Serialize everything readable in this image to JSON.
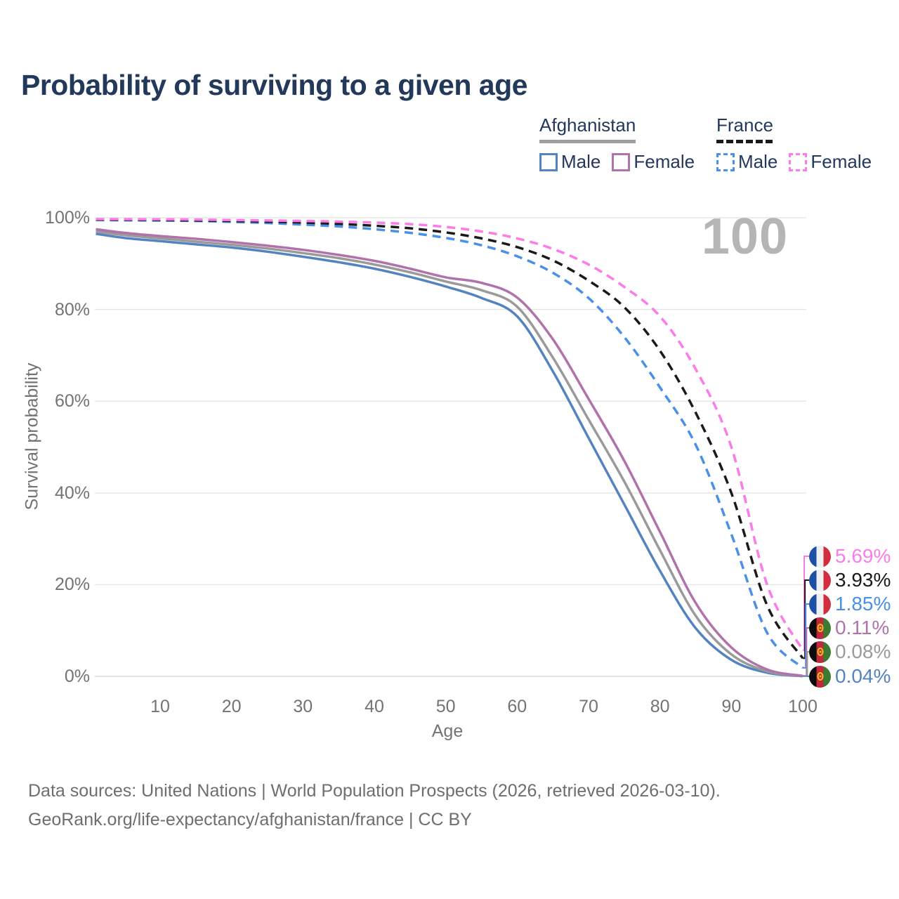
{
  "title": "Probability of surviving to a given age",
  "watermark": "100",
  "legend": {
    "groups": [
      {
        "name": "Afghanistan",
        "line_style": "solid",
        "underline_color": "#9e9e9e",
        "items": [
          {
            "label": "Male",
            "color": "#5483c1",
            "dashed": false
          },
          {
            "label": "Female",
            "color": "#b172ab",
            "dashed": false
          }
        ]
      },
      {
        "name": "France",
        "line_style": "dashed",
        "underline_color": "#1a1a1a",
        "items": [
          {
            "label": "Male",
            "color": "#4a90e8",
            "dashed": true
          },
          {
            "label": "Female",
            "color": "#fb7ce8",
            "dashed": true
          }
        ]
      }
    ]
  },
  "axes": {
    "y_label": "Survival probability",
    "x_label": "Age",
    "y_ticks": [
      "100%",
      "80%",
      "60%",
      "40%",
      "20%",
      "0%"
    ],
    "x_ticks": [
      "10",
      "20",
      "30",
      "40",
      "50",
      "60",
      "70",
      "80",
      "90",
      "100"
    ]
  },
  "end_labels": [
    {
      "value": "5.69%",
      "color": "#fb7ce8",
      "flag": "france"
    },
    {
      "value": "3.93%",
      "color": "#1a1a1a",
      "flag": "france"
    },
    {
      "value": "1.85%",
      "color": "#4a90e8",
      "flag": "france"
    },
    {
      "value": "0.11%",
      "color": "#b172ab",
      "flag": "afghanistan"
    },
    {
      "value": "0.08%",
      "color": "#9a9a9a",
      "flag": "afghanistan"
    },
    {
      "value": "0.04%",
      "color": "#5483c1",
      "flag": "afghanistan"
    }
  ],
  "footer": {
    "line1": "Data sources: United Nations | World Population Prospects (2026, retrieved 2026-03-10).",
    "line2": "GeoRank.org/life-expectancy/afghanistan/france | CC BY"
  },
  "chart_data": {
    "type": "line",
    "title": "Probability of surviving to a given age",
    "xlabel": "Age",
    "ylabel": "Survival probability",
    "x_range": [
      0,
      100
    ],
    "y_range_percent": [
      0,
      100
    ],
    "grid": true,
    "grid_color": "#e6e6e6",
    "legend_position": "top-right",
    "ages": [
      1,
      5,
      10,
      15,
      20,
      25,
      30,
      35,
      40,
      45,
      50,
      55,
      60,
      65,
      70,
      75,
      80,
      85,
      90,
      95,
      100
    ],
    "series": [
      {
        "name": "Afghanistan Male",
        "color": "#5483c1",
        "dash": false,
        "end_label": "0.04%",
        "values": [
          96.5,
          95.6,
          94.9,
          94.2,
          93.5,
          92.6,
          91.5,
          90.3,
          88.9,
          87.1,
          85.0,
          82.5,
          78.5,
          66.5,
          52.0,
          37.5,
          23.0,
          10.5,
          3.6,
          0.8,
          0.04
        ]
      },
      {
        "name": "Afghanistan Total",
        "color": "#9a9a9a",
        "dash": false,
        "end_label": "0.08%",
        "values": [
          97.0,
          96.2,
          95.5,
          94.8,
          94.1,
          93.3,
          92.3,
          91.2,
          89.8,
          88.1,
          86.1,
          84.2,
          80.6,
          69.5,
          56.0,
          42.5,
          27.5,
          13.2,
          4.8,
          1.1,
          0.08
        ]
      },
      {
        "name": "Afghanistan Female",
        "color": "#b172ab",
        "dash": false,
        "end_label": "0.11%",
        "values": [
          97.5,
          96.7,
          96.0,
          95.4,
          94.7,
          93.9,
          93.0,
          91.9,
          90.6,
          88.9,
          87.0,
          85.8,
          82.6,
          73.5,
          60.5,
          47.0,
          31.5,
          16.0,
          6.3,
          1.5,
          0.11
        ]
      },
      {
        "name": "France Male",
        "color": "#4a90e8",
        "dash": true,
        "end_label": "1.85%",
        "values": [
          99.5,
          99.45,
          99.4,
          99.3,
          99.1,
          98.85,
          98.5,
          98.1,
          97.5,
          96.7,
          95.6,
          94.0,
          91.6,
          88.0,
          82.5,
          74.0,
          63.0,
          50.5,
          31.0,
          9.5,
          1.85
        ]
      },
      {
        "name": "France Total",
        "color": "#1a1a1a",
        "dash": true,
        "end_label": "3.93%",
        "values": [
          99.6,
          99.55,
          99.5,
          99.4,
          99.3,
          99.15,
          98.95,
          98.65,
          98.25,
          97.7,
          96.8,
          95.5,
          93.6,
          90.7,
          86.3,
          80.5,
          71.0,
          57.5,
          40.0,
          15.5,
          3.93
        ]
      },
      {
        "name": "France Female",
        "color": "#fb7ce8",
        "dash": true,
        "end_label": "5.69%",
        "values": [
          99.7,
          99.68,
          99.65,
          99.6,
          99.5,
          99.4,
          99.3,
          99.15,
          98.95,
          98.6,
          98.0,
          97.0,
          95.5,
          93.2,
          89.8,
          84.9,
          78.5,
          67.0,
          50.0,
          20.0,
          5.69
        ]
      }
    ]
  }
}
